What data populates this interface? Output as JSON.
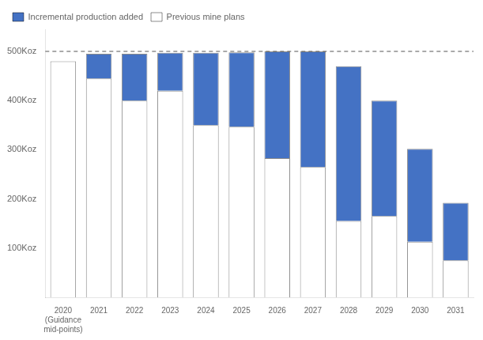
{
  "chart_data": {
    "type": "bar",
    "categories": [
      "2020\n(Guidance\nmid-points)",
      "2021",
      "2022",
      "2023",
      "2024",
      "2025",
      "2026",
      "2027",
      "2028",
      "2029",
      "2030",
      "2031"
    ],
    "series": [
      {
        "name": "Previous mine plans",
        "color": "#FFFFFF",
        "values": [
          480,
          445,
          400,
          420,
          350,
          347,
          283,
          265,
          155,
          165,
          113,
          75
        ]
      },
      {
        "name": "Incremental production added",
        "color": "#4472C4",
        "values": [
          0,
          50,
          95,
          77,
          147,
          151,
          217,
          235,
          315,
          235,
          189,
          117
        ]
      }
    ],
    "stacked": true,
    "ylim": [
      0,
      545
    ],
    "yticks": [
      {
        "value": 100,
        "label": "100Koz"
      },
      {
        "value": 200,
        "label": "200Koz"
      },
      {
        "value": 300,
        "label": "300Koz"
      },
      {
        "value": 400,
        "label": "400Koz"
      },
      {
        "value": 500,
        "label": "500Koz"
      }
    ],
    "grid": false,
    "legend": "upper left",
    "reference_line": {
      "value": 500,
      "color": "#555555",
      "line_style": "dashed"
    }
  }
}
